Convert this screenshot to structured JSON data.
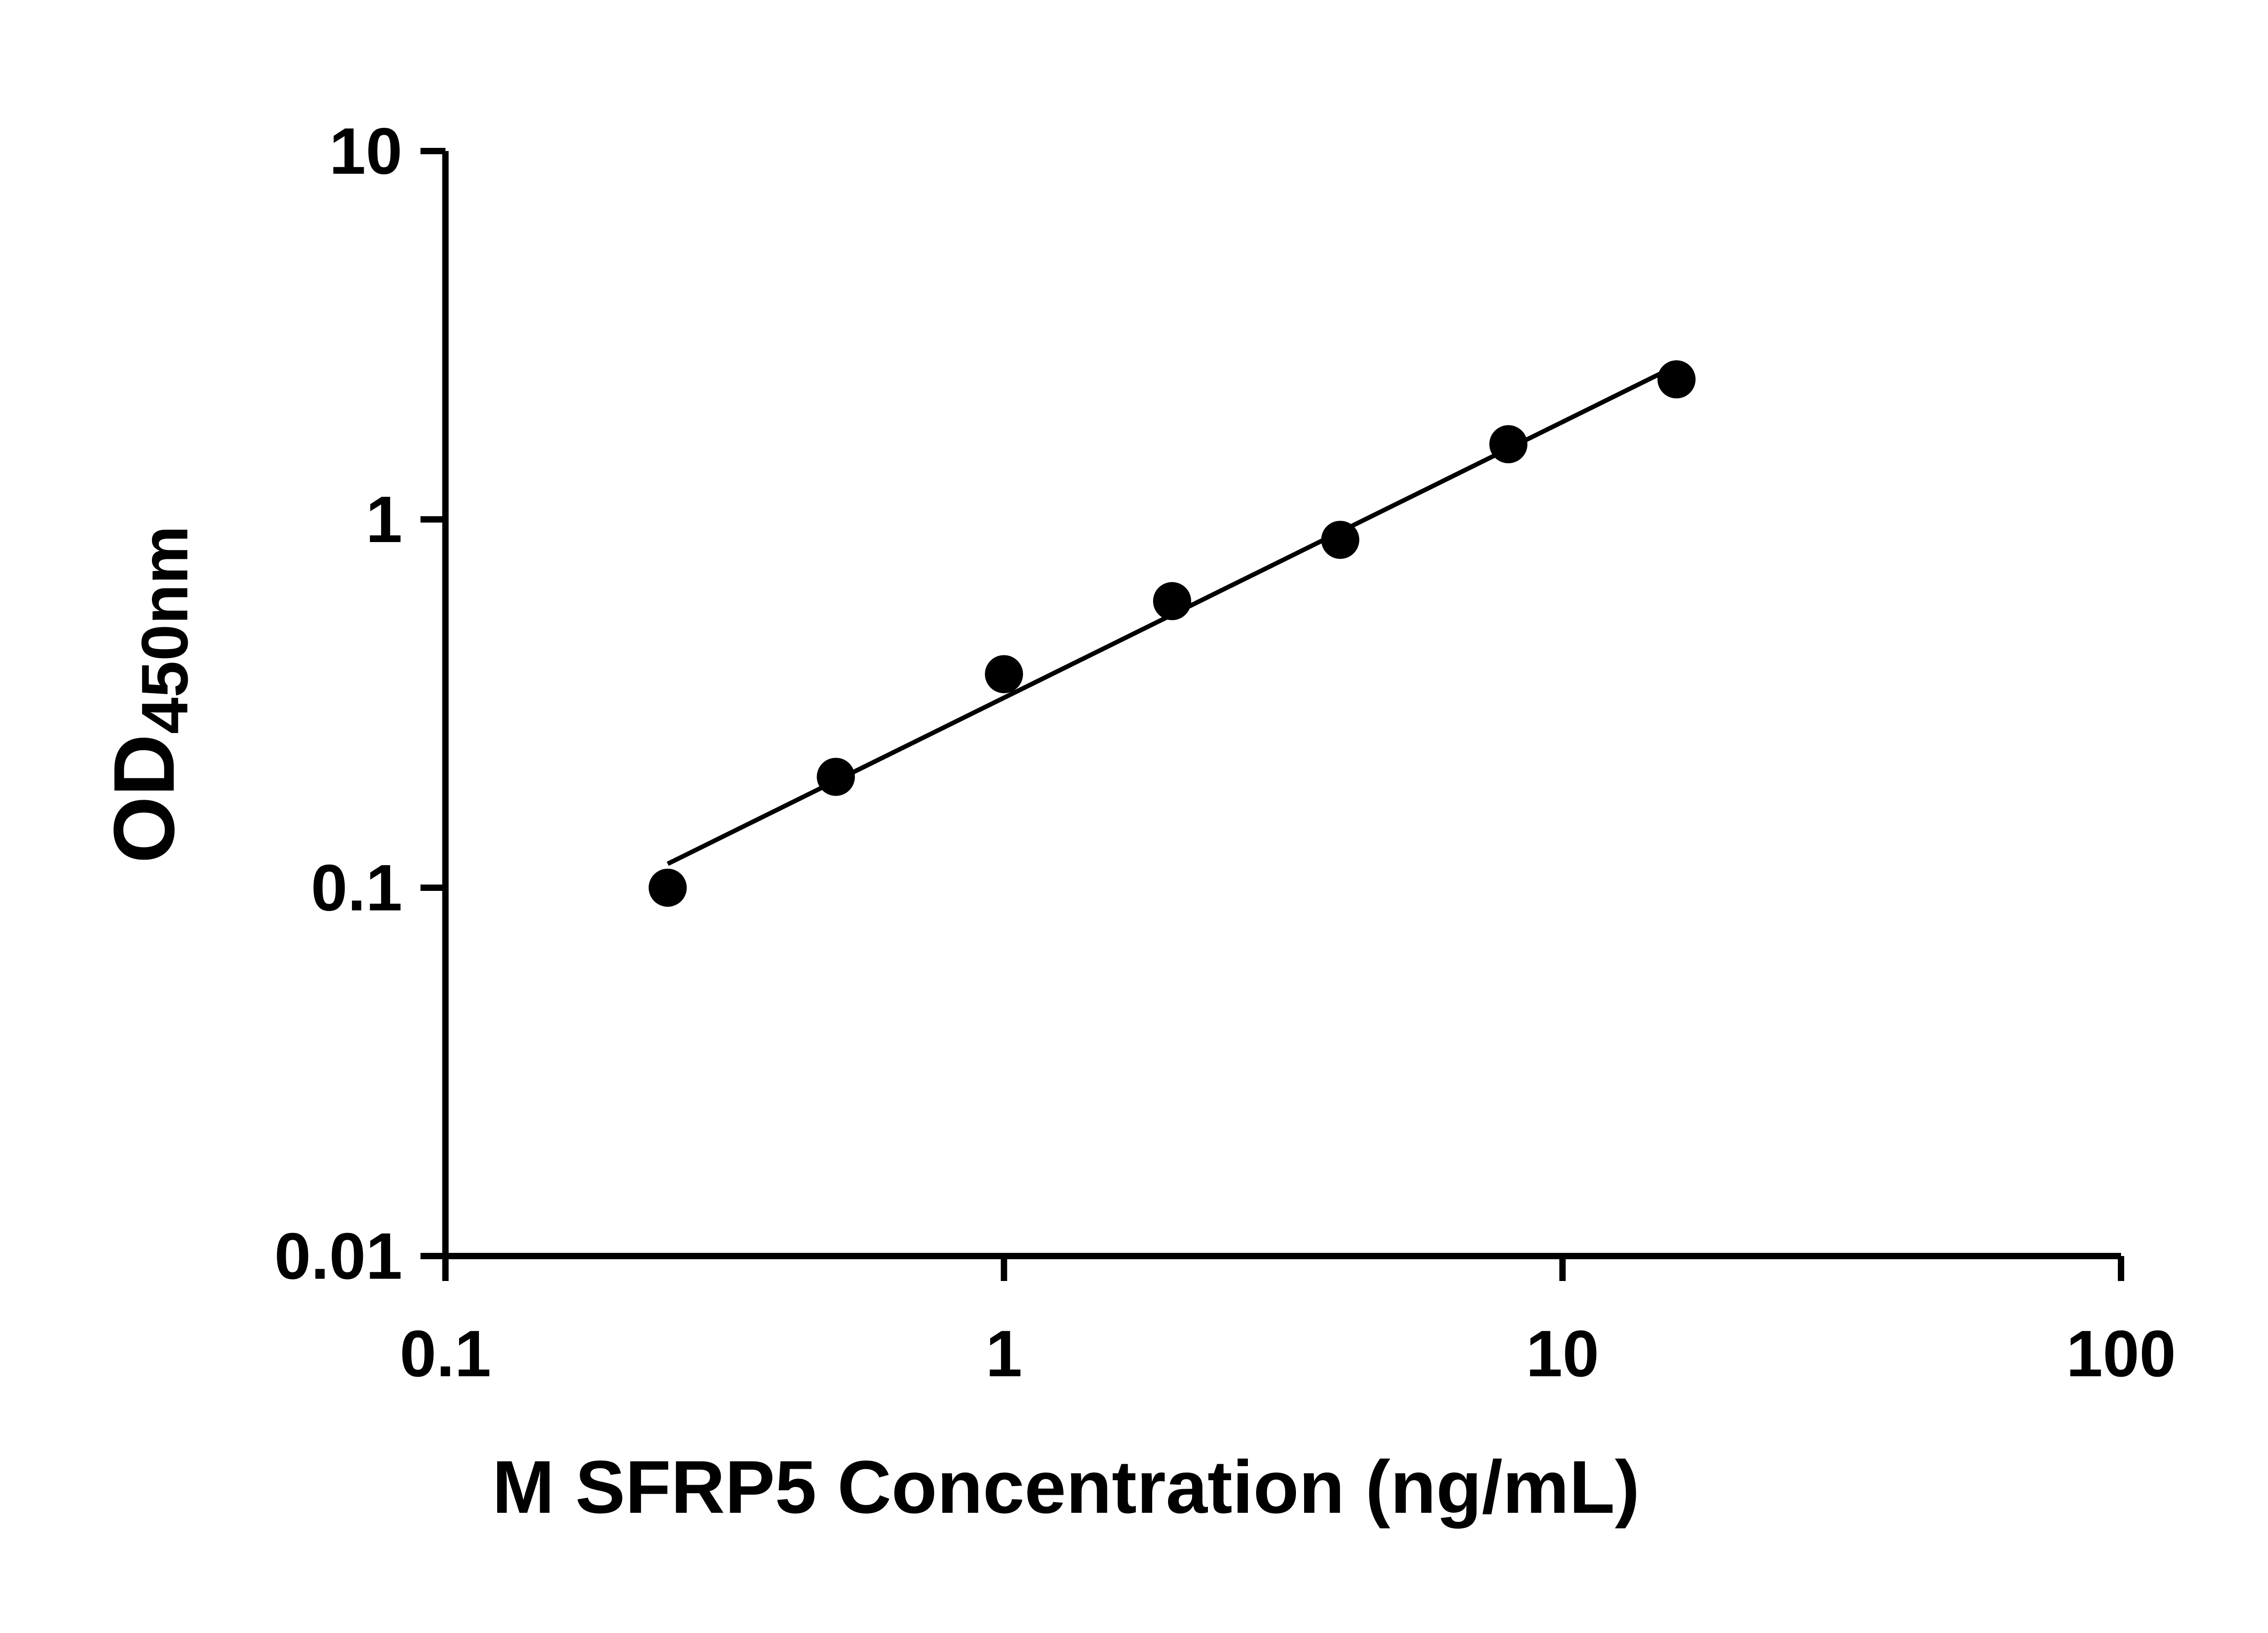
{
  "figure": {
    "background": "#ffffff",
    "foreground": "#000000"
  },
  "chart_data": {
    "type": "scatter",
    "title": "",
    "xlabel": "M SFRP5 Concentration (ng/mL)",
    "ylabel": {
      "main": "OD",
      "subscript": "450nm"
    },
    "xscale": "log",
    "yscale": "log",
    "xlim": [
      0.1,
      100
    ],
    "ylim": [
      0.01,
      10
    ],
    "grid": false,
    "legend": false,
    "x_ticks": [
      {
        "value": 0.1,
        "label": "0.1"
      },
      {
        "value": 1,
        "label": "1"
      },
      {
        "value": 10,
        "label": "10"
      },
      {
        "value": 100,
        "label": "100"
      }
    ],
    "y_ticks": [
      {
        "value": 0.01,
        "label": "0.01"
      },
      {
        "value": 0.1,
        "label": "0.1"
      },
      {
        "value": 1,
        "label": "1"
      },
      {
        "value": 10,
        "label": "10"
      }
    ],
    "points": [
      {
        "x": 0.25,
        "y": 0.1
      },
      {
        "x": 0.5,
        "y": 0.2
      },
      {
        "x": 1,
        "y": 0.38
      },
      {
        "x": 2,
        "y": 0.6
      },
      {
        "x": 4,
        "y": 0.88
      },
      {
        "x": 8,
        "y": 1.6
      },
      {
        "x": 16,
        "y": 2.4
      }
    ],
    "trendline": {
      "fit": "linear-loglog",
      "x_start": 0.25,
      "x_end": 16
    },
    "marker": {
      "shape": "circle",
      "color": "#000000"
    },
    "line_color": "#000000",
    "axis_color": "#000000"
  }
}
